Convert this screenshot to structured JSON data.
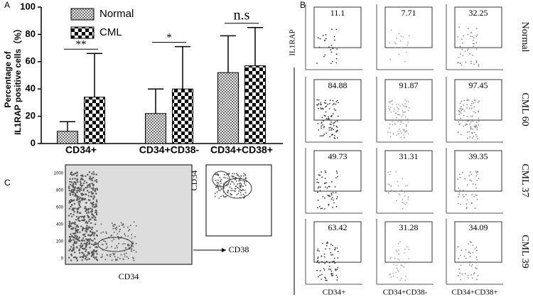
{
  "chart_data": {
    "type": "bar",
    "panel_label": "A",
    "ylabel_lines": [
      "Percentage of",
      "IL1RAP positive cells（%）"
    ],
    "categories": [
      "CD34+",
      "CD34+CD38-",
      "CD34+CD38+"
    ],
    "series": [
      {
        "name": "Normal",
        "color": "#888888",
        "values": [
          9,
          22,
          52
        ],
        "errors": [
          7,
          18,
          27
        ]
      },
      {
        "name": "CML",
        "color": "#000000",
        "values": [
          34,
          40,
          57
        ],
        "errors": [
          32,
          31,
          28
        ]
      }
    ],
    "annotations": [
      "**",
      "*",
      "n.s"
    ],
    "ylim": [
      0,
      100
    ],
    "yticks": [
      0,
      20,
      40,
      60,
      80,
      100
    ]
  },
  "panel_b": {
    "label": "B",
    "ylabel": "IL1RAP",
    "columns": [
      "CD34+",
      "CD34+CD38-",
      "CD34+CD38+"
    ],
    "rows": [
      {
        "name": "Normal",
        "values": [
          "11.1",
          "7.71",
          "32.25"
        ]
      },
      {
        "name": "CML 60",
        "values": [
          "84.88",
          "91.87",
          "97.45"
        ]
      },
      {
        "name": "CML 37",
        "values": [
          "49.73",
          "31.31",
          "39.35"
        ]
      },
      {
        "name": "CML 39",
        "values": [
          "63.42",
          "31.28",
          "34.09"
        ]
      }
    ]
  },
  "panel_c": {
    "label": "C",
    "left_xlabel": "CD34",
    "right_xlabel": "CD38",
    "right_ylabel": "CD34",
    "left_yticks": [
      "0",
      "200",
      "400",
      "600",
      "800",
      "1000"
    ]
  }
}
